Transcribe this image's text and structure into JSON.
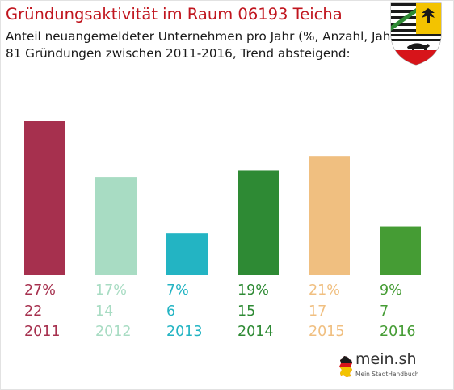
{
  "title": "Gründungsaktivität im Raum 06193 Teicha",
  "subtitle_line1": "Anteil neuangemeldeter Unternehmen pro Jahr (%, Anzahl, Jahr)",
  "subtitle_line2": "81 Gründungen zwischen 2011-2016, Trend absteigend:",
  "logo": {
    "name": "mein.sh",
    "tagline": "Mein StadtHandbuch",
    "icon": "germany-map-icon"
  },
  "coat_of_arms": "coat-of-arms-saxony-anhalt-icon",
  "chart_data": {
    "type": "bar",
    "categories": [
      "2011",
      "2012",
      "2013",
      "2014",
      "2015",
      "2016"
    ],
    "values": [
      22,
      14,
      6,
      15,
      17,
      7
    ],
    "percent_labels": [
      "27%",
      "17%",
      "7%",
      "19%",
      "21%",
      "9%"
    ],
    "count_labels": [
      "22",
      "14",
      "6",
      "15",
      "17",
      "7"
    ],
    "colors": [
      "#a6304e",
      "#a8dcc3",
      "#23b4c3",
      "#2e8a34",
      "#f0bf80",
      "#459c34"
    ],
    "ylim": [
      0,
      22
    ],
    "grid": false,
    "legend": "none"
  }
}
